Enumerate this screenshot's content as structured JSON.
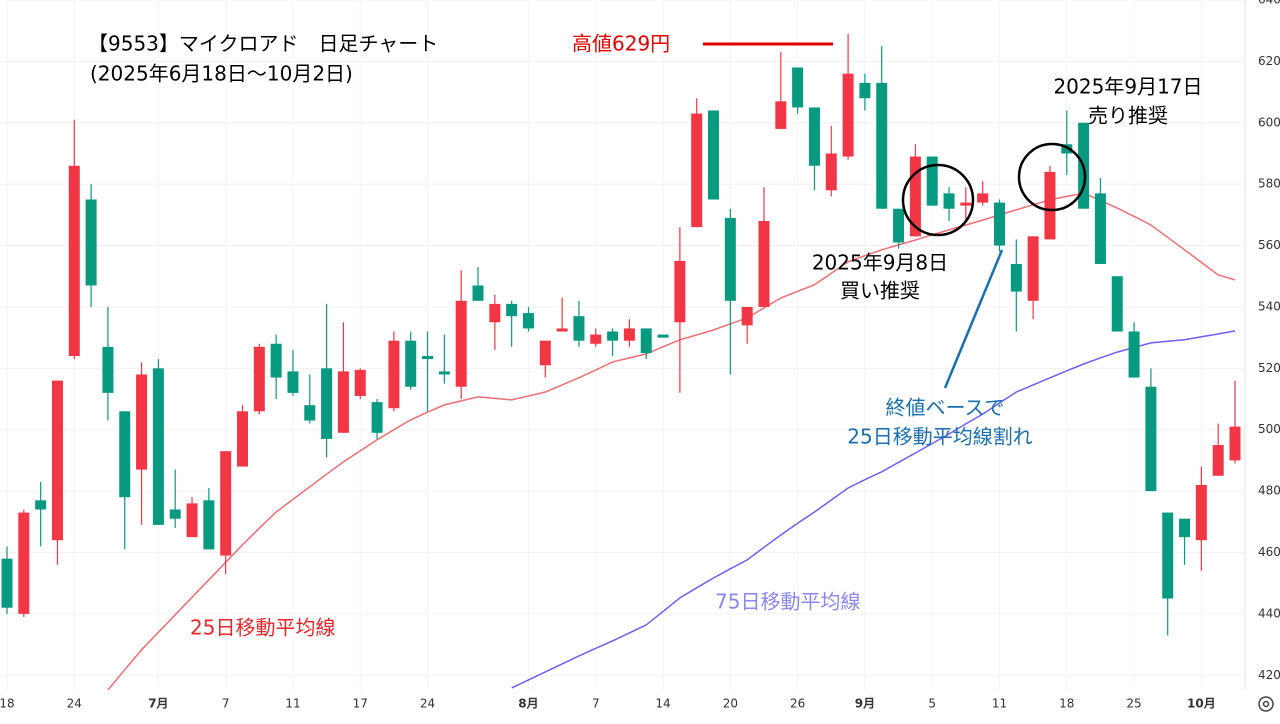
{
  "chart_data": {
    "type": "candlestick",
    "title": "【9553】マイクロアド　日足チャート",
    "subtitle": "(2025年6月18日～10月2日)",
    "annotations": {
      "high_label": "高値629円",
      "buy_date": "2025年9月8日",
      "buy_text": "買い推奨",
      "sell_date": "2025年9月17日",
      "sell_text": "売り推奨",
      "break_line1": "終値ベースで",
      "break_line2": "25日移動平均線割れ"
    },
    "categories": [
      "18",
      null,
      null,
      null,
      "24",
      null,
      null,
      null,
      null,
      "7月",
      null,
      null,
      null,
      "7",
      null,
      null,
      null,
      "11",
      null,
      null,
      null,
      "17",
      null,
      null,
      null,
      "24",
      null,
      null,
      null,
      null,
      null,
      "8月",
      null,
      null,
      null,
      "7",
      null,
      null,
      null,
      "14",
      null,
      null,
      null,
      "20",
      null,
      null,
      null,
      "26",
      null,
      null,
      null,
      "9月",
      null,
      null,
      null,
      "5",
      null,
      null,
      null,
      "11",
      null,
      null,
      null,
      "18",
      null,
      null,
      null,
      "25",
      null,
      null,
      null,
      "10月",
      null,
      null
    ],
    "open": [
      458,
      440,
      477,
      464,
      524,
      575,
      527,
      506,
      487,
      520,
      474,
      465,
      477,
      459,
      488,
      506,
      528,
      519,
      508,
      520,
      499,
      511,
      509,
      507,
      529,
      524,
      519,
      514,
      547,
      535,
      541,
      538,
      521,
      532,
      537,
      528,
      532,
      529,
      533,
      531,
      535,
      566,
      604,
      569,
      534,
      540,
      598,
      618,
      605,
      578,
      589,
      613,
      613,
      572,
      563,
      589,
      577,
      573,
      574,
      574,
      554,
      542,
      562,
      593,
      600,
      577,
      550,
      532,
      514,
      473,
      471,
      464,
      485,
      490
    ],
    "high": [
      462,
      474,
      483,
      516,
      601,
      580,
      540,
      506,
      522,
      523,
      487,
      478,
      481,
      493,
      508,
      528,
      531,
      526,
      518,
      541,
      535,
      520,
      510,
      532,
      532,
      532,
      531,
      552,
      553,
      544,
      542,
      540,
      529,
      543,
      542,
      533,
      533,
      536,
      533,
      531,
      566,
      608,
      604,
      572,
      540,
      579,
      623,
      618,
      605,
      599,
      629,
      616,
      625,
      572,
      593,
      589,
      579,
      579,
      581,
      575,
      562,
      563,
      586,
      604,
      600,
      582,
      550,
      535,
      520,
      473,
      471,
      488,
      502,
      516
    ],
    "low": [
      440,
      439,
      462,
      456,
      523,
      540,
      503,
      461,
      469,
      469,
      468,
      465,
      461,
      453,
      488,
      505,
      510,
      511,
      502,
      491,
      499,
      510,
      497,
      506,
      513,
      506,
      515,
      510,
      542,
      526,
      527,
      532,
      517,
      532,
      527,
      527,
      524,
      527,
      523,
      530,
      512,
      566,
      575,
      518,
      528,
      540,
      598,
      603,
      578,
      576,
      588,
      604,
      572,
      559,
      563,
      573,
      568,
      568,
      573,
      558,
      532,
      536,
      562,
      583,
      572,
      554,
      532,
      517,
      480,
      433,
      456,
      454,
      485,
      489
    ],
    "close": [
      442,
      473,
      474,
      516,
      586,
      547,
      512,
      478,
      518,
      469,
      471,
      476,
      461,
      493,
      506,
      527,
      517,
      512,
      503,
      497,
      519,
      519.5,
      499,
      529,
      514,
      523,
      518,
      542,
      542,
      541,
      537,
      533,
      529,
      533,
      529,
      531,
      529,
      533,
      525,
      530,
      555,
      603,
      575,
      542,
      540,
      568,
      607,
      605,
      586,
      590,
      616,
      608,
      572,
      561,
      589,
      573,
      572,
      574,
      577,
      560,
      545,
      563,
      584,
      590,
      572,
      554,
      532,
      517,
      480,
      445,
      465,
      482,
      495,
      501
    ],
    "up_color": "#f23645",
    "down_color": "#089981",
    "lines": [
      {
        "name": "25日移動平均線",
        "color": "#ec6f73",
        "label_color": "#e8262b",
        "values": [
          null,
          null,
          null,
          null,
          null,
          null,
          415.2,
          421.8,
          428.3,
          434.0,
          439.7,
          445.4,
          451.1,
          456.8,
          462.5,
          467.9,
          473.2,
          477.3,
          481.4,
          485.5,
          489.5,
          493.1,
          496.7,
          500.0,
          503.2,
          505.7,
          508.1,
          509.4,
          510.7,
          510.2,
          509.7,
          511.0,
          512.3,
          514.6,
          516.9,
          519.5,
          522.1,
          523.4,
          524.7,
          527.0,
          529.3,
          530.9,
          532.5,
          534.5,
          536.4,
          539.7,
          542.9,
          545.1,
          547.2,
          551.0,
          554.7,
          556.7,
          558.6,
          560.2,
          561.8,
          563.5,
          565.1,
          566.7,
          568.3,
          570.0,
          571.6,
          573.3,
          574.9,
          576.0,
          577.1,
          574.7,
          572.2,
          569.5,
          566.7,
          562.7,
          558.6,
          554.5,
          550.4,
          548.8
        ]
      },
      {
        "name": "75日移動平均線",
        "color": "#6f5ef0",
        "label_color": "#8a86f0",
        "values": [
          null,
          null,
          null,
          null,
          null,
          null,
          null,
          null,
          null,
          null,
          null,
          null,
          null,
          null,
          null,
          null,
          null,
          null,
          null,
          null,
          null,
          null,
          null,
          null,
          null,
          null,
          null,
          null,
          null,
          null,
          415.9,
          418.5,
          421.1,
          423.7,
          426.3,
          428.8,
          431.2,
          433.8,
          436.4,
          440.8,
          445.2,
          448.5,
          451.7,
          454.7,
          457.6,
          461.7,
          465.7,
          469.5,
          473.2,
          477.1,
          481.0,
          483.7,
          486.3,
          489.4,
          492.4,
          495.5,
          498.6,
          501.9,
          505.1,
          508.7,
          512.3,
          514.6,
          516.9,
          519.2,
          521.4,
          523.4,
          525.3,
          526.8,
          528.3,
          528.8,
          529.3,
          530.3,
          531.2,
          532.2
        ]
      }
    ],
    "ylim": [
      415.2,
      640
    ],
    "yticks": [
      420,
      440,
      460,
      480,
      500,
      520,
      540,
      560,
      580,
      600,
      620,
      640
    ],
    "grid": true
  }
}
